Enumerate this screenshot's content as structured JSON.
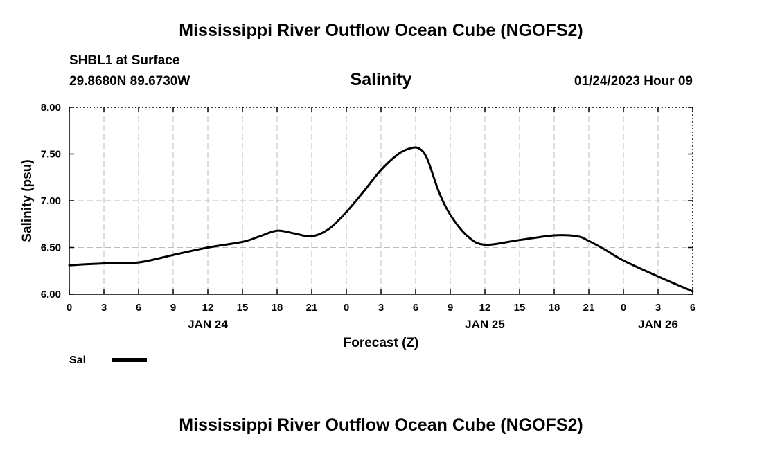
{
  "header": {
    "title": "Mississippi River Outflow Ocean Cube (NGOFS2)",
    "station": "SHBL1 at Surface",
    "coords": "29.8680N  89.6730W",
    "plot_title": "Salinity",
    "datetime": "01/24/2023 Hour 09"
  },
  "footer": {
    "title": "Mississippi River Outflow Ocean Cube (NGOFS2)"
  },
  "legend": {
    "label": "Sal"
  },
  "chart_data": {
    "type": "line",
    "title": "Salinity",
    "xlabel": "Forecast (Z)",
    "ylabel": "Salinity (psu)",
    "xlim": [
      0,
      54
    ],
    "ylim": [
      6.0,
      8.0
    ],
    "grid": true,
    "legend_position": "bottom-left",
    "x_ticks": [
      0,
      3,
      6,
      9,
      12,
      15,
      18,
      21,
      24,
      27,
      30,
      33,
      36,
      39,
      42,
      45,
      48,
      51,
      54
    ],
    "x_tick_labels": [
      "0",
      "3",
      "6",
      "9",
      "12",
      "15",
      "18",
      "21",
      "0",
      "3",
      "6",
      "9",
      "12",
      "15",
      "18",
      "21",
      "0",
      "3",
      "6"
    ],
    "y_ticks": [
      6.0,
      6.5,
      7.0,
      7.5,
      8.0
    ],
    "y_tick_labels": [
      "6.00",
      "6.50",
      "7.00",
      "7.50",
      "8.00"
    ],
    "date_labels": [
      {
        "x": 12,
        "label": "JAN 24"
      },
      {
        "x": 36,
        "label": "JAN 25"
      },
      {
        "x": 51,
        "label": "JAN 26"
      }
    ],
    "series": [
      {
        "name": "Sal",
        "x": [
          0,
          3,
          6,
          9,
          12,
          15,
          16.5,
          18,
          19.5,
          21,
          22.5,
          24,
          25.5,
          27,
          28.5,
          29.5,
          30.3,
          31,
          32,
          33,
          34.5,
          36,
          39,
          42,
          44,
          45,
          46.5,
          48,
          51,
          54
        ],
        "y": [
          6.31,
          6.33,
          6.34,
          6.42,
          6.5,
          6.56,
          6.62,
          6.68,
          6.65,
          6.62,
          6.7,
          6.88,
          7.1,
          7.33,
          7.5,
          7.56,
          7.56,
          7.45,
          7.1,
          6.85,
          6.62,
          6.53,
          6.58,
          6.63,
          6.62,
          6.57,
          6.47,
          6.36,
          6.19,
          6.03
        ]
      }
    ]
  }
}
